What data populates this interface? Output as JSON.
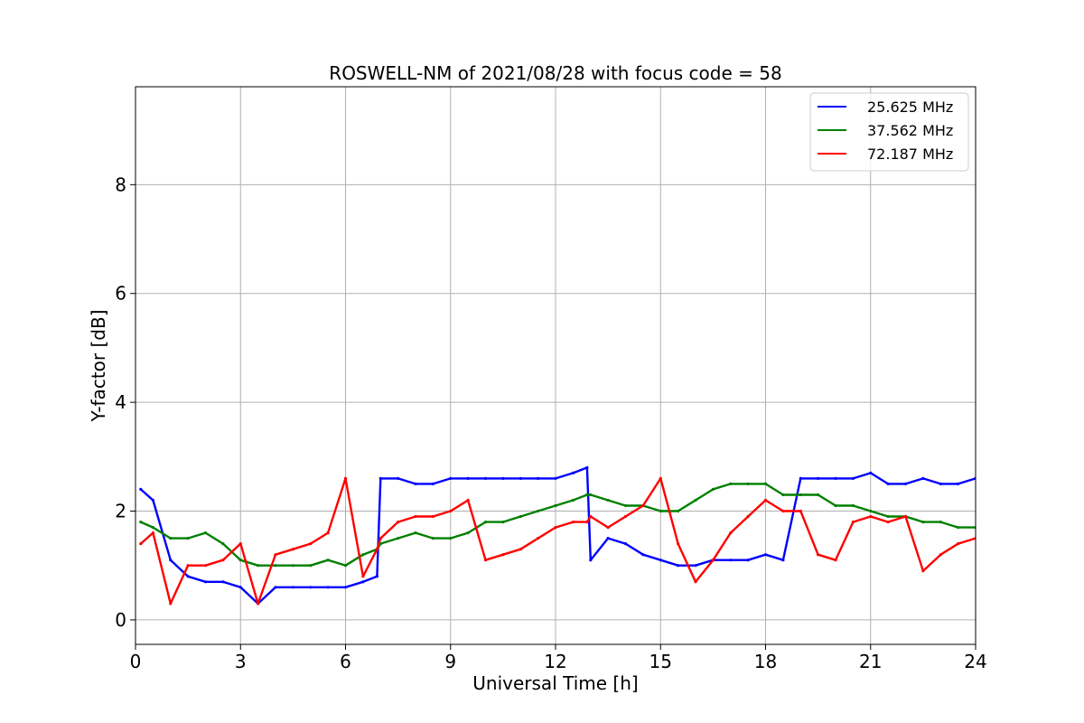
{
  "chart_data": {
    "type": "line",
    "title": "ROSWELL-NM of 2021/08/28 with focus code = 58",
    "xlabel": "Universal Time [h]",
    "ylabel": "Y-factor [dB]",
    "xlim": [
      0,
      24
    ],
    "ylim": [
      -0.45,
      9.8
    ],
    "xticks": [
      0,
      3,
      6,
      9,
      12,
      15,
      18,
      21,
      24
    ],
    "yticks": [
      0,
      2,
      4,
      6,
      8
    ],
    "grid": true,
    "legend_position": "top-right",
    "x": [
      0.15,
      0.5,
      1.0,
      1.5,
      2.0,
      2.5,
      3.0,
      3.5,
      4.0,
      4.5,
      5.0,
      5.5,
      6.0,
      6.5,
      6.9,
      7.0,
      7.5,
      8.0,
      8.5,
      9.0,
      9.5,
      10.0,
      10.5,
      11.0,
      11.5,
      12.0,
      12.5,
      12.9,
      13.0,
      13.5,
      14.0,
      14.5,
      15.0,
      15.5,
      16.0,
      16.5,
      17.0,
      17.5,
      18.0,
      18.5,
      19.0,
      19.5,
      20.0,
      20.5,
      21.0,
      21.5,
      22.0,
      22.5,
      23.0,
      23.5,
      24.0
    ],
    "series": [
      {
        "name": "25.625 MHz",
        "color": "#0000ff",
        "values": [
          2.4,
          2.2,
          1.1,
          0.8,
          0.7,
          0.7,
          0.6,
          0.3,
          0.6,
          0.6,
          0.6,
          0.6,
          0.6,
          0.7,
          0.8,
          2.6,
          2.6,
          2.5,
          2.5,
          2.6,
          2.6,
          2.6,
          2.6,
          2.6,
          2.6,
          2.6,
          2.7,
          2.8,
          1.1,
          1.5,
          1.4,
          1.2,
          1.1,
          1.0,
          1.0,
          1.1,
          1.1,
          1.1,
          1.2,
          1.1,
          2.6,
          2.6,
          2.6,
          2.6,
          2.7,
          2.5,
          2.5,
          2.6,
          2.5,
          2.5,
          2.6
        ]
      },
      {
        "name": "37.562 MHz",
        "color": "#008000",
        "values": [
          1.8,
          1.7,
          1.5,
          1.5,
          1.6,
          1.4,
          1.1,
          1.0,
          1.0,
          1.0,
          1.0,
          1.1,
          1.0,
          1.2,
          1.3,
          1.4,
          1.5,
          1.6,
          1.5,
          1.5,
          1.6,
          1.8,
          1.8,
          1.9,
          2.0,
          2.1,
          2.2,
          2.3,
          2.3,
          2.2,
          2.1,
          2.1,
          2.0,
          2.0,
          2.2,
          2.4,
          2.5,
          2.5,
          2.5,
          2.3,
          2.3,
          2.3,
          2.1,
          2.1,
          2.0,
          1.9,
          1.9,
          1.8,
          1.8,
          1.7,
          1.7
        ]
      },
      {
        "name": "72.187 MHz",
        "color": "#ff0000",
        "values": [
          1.4,
          1.6,
          0.3,
          1.0,
          1.0,
          1.1,
          1.4,
          0.3,
          1.2,
          1.3,
          1.4,
          1.6,
          2.6,
          0.8,
          1.3,
          1.5,
          1.8,
          1.9,
          1.9,
          2.0,
          2.2,
          1.1,
          1.2,
          1.3,
          1.5,
          1.7,
          1.8,
          1.8,
          1.9,
          1.7,
          1.9,
          2.1,
          2.6,
          1.4,
          0.7,
          1.1,
          1.6,
          1.9,
          2.2,
          2.0,
          2.0,
          1.2,
          1.1,
          1.8,
          1.9,
          1.8,
          1.9,
          0.9,
          1.2,
          1.4,
          1.5
        ]
      }
    ]
  }
}
